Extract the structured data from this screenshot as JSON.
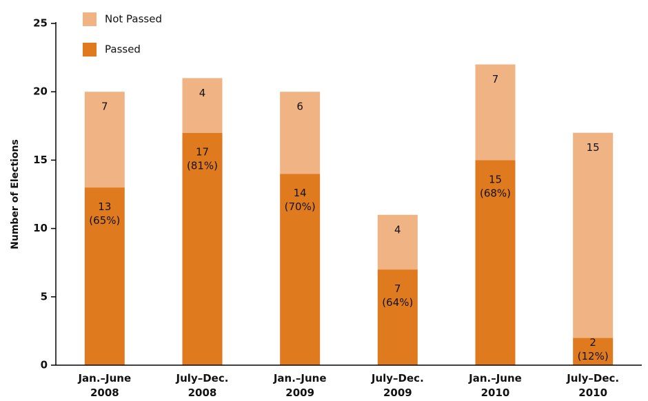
{
  "chart_data": {
    "type": "stacked_bar",
    "y_label": "Number of Elections",
    "categories": [
      "Jan.–June 2008",
      "July–Dec. 2008",
      "Jan.–June 2009",
      "July–Dec. 2009",
      "Jan.–June 2010",
      "July–Dec. 2010"
    ],
    "series": [
      {
        "name": "Passed",
        "color": "#e07a1f",
        "values": [
          13,
          17,
          14,
          7,
          15,
          2
        ],
        "value_labels": [
          "13 (65%)",
          "17 (81%)",
          "14 (70%)",
          "7 (64%)",
          "15 (68%)",
          "2 (12%)"
        ]
      },
      {
        "name": "Not Passed",
        "color": "#f0b383",
        "values": [
          7,
          4,
          6,
          4,
          7,
          15
        ]
      }
    ],
    "ylim": [
      0,
      25
    ],
    "yticks": [
      0,
      5,
      10,
      15,
      20,
      25
    ],
    "grid": false
  }
}
